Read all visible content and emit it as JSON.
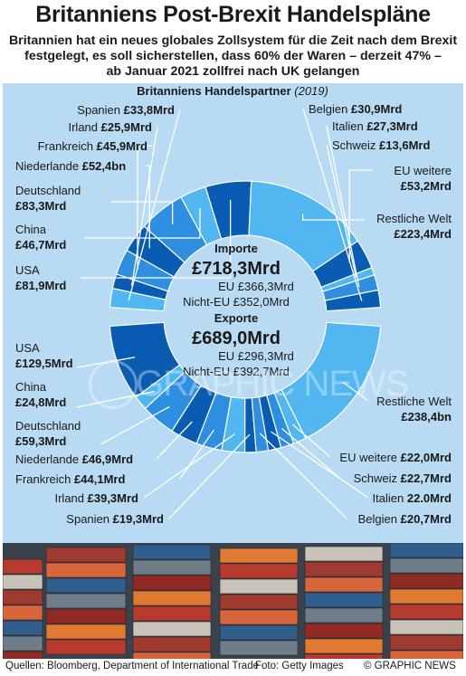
{
  "header": {
    "title": "Britanniens Post-Brexit Handelspläne",
    "subtitle_lines": [
      "Britannien hat ein neues globales Zollsystem für die Zeit nach dem Brexit",
      "festgelegt, es soll sicherstellen, dass 60% der Waren – derzeit 47% –",
      "ab Januar 2021 zollfrei nach UK gelangen"
    ]
  },
  "colors": {
    "panel_bg": "#b8daf2",
    "dark_blue": "#0a5cb3",
    "mid_blue": "#2e8fe0",
    "light_blue": "#52b7f0",
    "text": "#1a1a1a"
  },
  "chart_data": {
    "type": "donut",
    "title": "Britanniens Handelspartner",
    "title_year": "(2019)",
    "imports": {
      "label": "Importe",
      "total": "£718,3Mrd",
      "eu": "EU £366,3Mrd",
      "non_eu": "Nicht-EU £352,0Mrd",
      "segments": [
        {
          "name": "Spanien",
          "value_label": "£33,8Mrd",
          "value": 33.8,
          "shade": "light"
        },
        {
          "name": "Irland",
          "value_label": "£25,9Mrd",
          "value": 25.9,
          "shade": "dark"
        },
        {
          "name": "Frankreich",
          "value_label": "£45,9Mrd",
          "value": 45.9,
          "shade": "mid"
        },
        {
          "name": "Niederlande",
          "value_label": "£52,4bn",
          "value": 52.4,
          "shade": "dark"
        },
        {
          "name": "Deutschland",
          "value_label": "£83,3Mrd",
          "value": 83.3,
          "shade": "mid"
        },
        {
          "name": "China",
          "value_label": "£46,7Mrd",
          "value": 46.7,
          "shade": "light"
        },
        {
          "name": "USA",
          "value_label": "£81,9Mrd",
          "value": 81.9,
          "shade": "dark"
        },
        {
          "name": "Restliche Welt",
          "value_label": "£223,4Mrd",
          "value": 223.4,
          "shade": "light"
        },
        {
          "name": "EU weitere",
          "value_label": "£53,2Mrd",
          "value": 53.2,
          "shade": "dark"
        },
        {
          "name": "Schweiz",
          "value_label": "£13,6Mrd",
          "value": 13.6,
          "shade": "light"
        },
        {
          "name": "Italien",
          "value_label": "£27,3Mrd",
          "value": 27.3,
          "shade": "mid"
        },
        {
          "name": "Belgien",
          "value_label": "£30,9Mrd",
          "value": 30.9,
          "shade": "dark"
        }
      ]
    },
    "exports": {
      "label": "Exporte",
      "total": "£689,0Mrd",
      "eu": "EU £296,3Mrd",
      "non_eu": "Nicht-EU £392,7Mrd",
      "segments": [
        {
          "name": "USA",
          "value_label": "£129,5Mrd",
          "value": 129.5,
          "shade": "dark"
        },
        {
          "name": "China",
          "value_label": "£24,8Mrd",
          "value": 24.8,
          "shade": "light"
        },
        {
          "name": "Deutschland",
          "value_label": "£59,3Mrd",
          "value": 59.3,
          "shade": "mid"
        },
        {
          "name": "Niederlande",
          "value_label": "£46,9Mrd",
          "value": 46.9,
          "shade": "dark"
        },
        {
          "name": "Frankreich",
          "value_label": "£44,1Mrd",
          "value": 44.1,
          "shade": "mid"
        },
        {
          "name": "Irland",
          "value_label": "£39,3Mrd",
          "value": 39.3,
          "shade": "light"
        },
        {
          "name": "Spanien",
          "value_label": "£19,3Mrd",
          "value": 19.3,
          "shade": "dark"
        },
        {
          "name": "Belgien",
          "value_label": "£20,7Mrd",
          "value": 20.7,
          "shade": "mid"
        },
        {
          "name": "Italien",
          "value_label": "22.0Mrd",
          "value": 22.0,
          "shade": "dark"
        },
        {
          "name": "Schweiz",
          "value_label": "£22,7Mrd",
          "value": 22.7,
          "shade": "mid"
        },
        {
          "name": "EU weitere",
          "value_label": "£22,0Mrd",
          "value": 22.0,
          "shade": "light"
        },
        {
          "name": "Restliche Welt",
          "value_label": "£238,4bn",
          "value": 238.4,
          "shade": "light"
        }
      ]
    }
  },
  "watermark": "GRAPHIC NEWS",
  "footer": {
    "sources": "Quellen: Bloomberg, Department of International Trade",
    "photo_credit": "Foto: Getty Images",
    "copyright": "© GRAPHIC NEWS"
  }
}
